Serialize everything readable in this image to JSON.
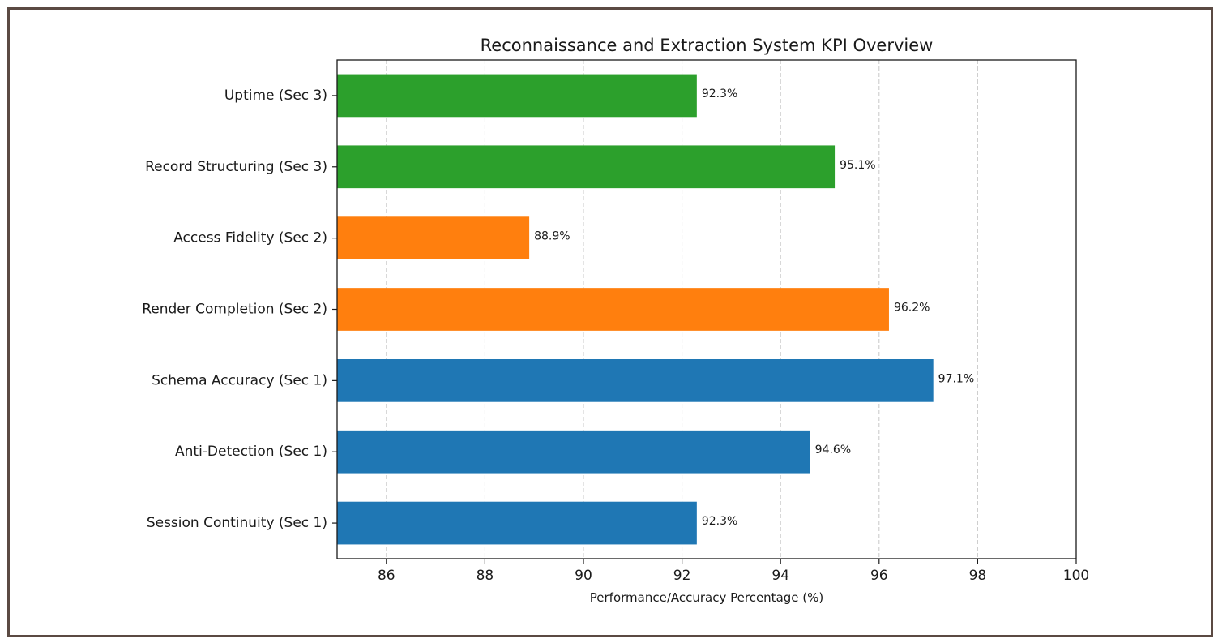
{
  "chart_data": {
    "type": "bar",
    "orientation": "horizontal",
    "title": "Reconnaissance and Extraction System KPI Overview",
    "xlabel": "Performance/Accuracy Percentage (%)",
    "ylabel": "",
    "xlim": [
      85,
      100
    ],
    "xticks": [
      "86",
      "88",
      "90",
      "92",
      "94",
      "96",
      "98",
      "100"
    ],
    "grid": "x, dashed",
    "categories": [
      "Session Continuity (Sec 1)",
      "Anti-Detection (Sec 1)",
      "Schema Accuracy (Sec 1)",
      "Render Completion (Sec 2)",
      "Access Fidelity (Sec 2)",
      "Record Structuring (Sec 3)",
      "Uptime (Sec 3)"
    ],
    "values": [
      92.3,
      94.6,
      97.1,
      96.2,
      88.9,
      95.1,
      92.3
    ],
    "data_labels": [
      "92.3%",
      "94.6%",
      "97.1%",
      "96.2%",
      "88.9%",
      "95.1%",
      "92.3%"
    ],
    "colors": [
      "#1f77b4",
      "#1f77b4",
      "#1f77b4",
      "#ff7f0e",
      "#ff7f0e",
      "#2ca02c",
      "#2ca02c"
    ]
  }
}
